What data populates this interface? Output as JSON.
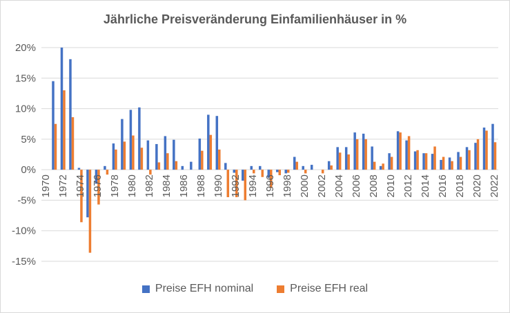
{
  "chart_data": {
    "type": "bar",
    "title": "Jährliche Preisveränderung Einfamilienhäuser in %",
    "xlabel": "",
    "ylabel": "",
    "ylim": [
      -15,
      20
    ],
    "yticks": [
      20,
      15,
      10,
      5,
      0,
      -5,
      -10,
      -15
    ],
    "ytick_labels": [
      "20%",
      "15%",
      "10%",
      "5%",
      "0%",
      "-5%",
      "-10%",
      "-15%"
    ],
    "grid": true,
    "legend_position": "bottom",
    "categories": [
      "1970",
      "1971",
      "1972",
      "1973",
      "1974",
      "1975",
      "1976",
      "1977",
      "1978",
      "1979",
      "1980",
      "1981",
      "1982",
      "1983",
      "1984",
      "1985",
      "1986",
      "1987",
      "1988",
      "1989",
      "1990",
      "1991",
      "1992",
      "1993",
      "1994",
      "1995",
      "1996",
      "1997",
      "1998",
      "1999",
      "2000",
      "2001",
      "2002",
      "2003",
      "2004",
      "2005",
      "2006",
      "2007",
      "2008",
      "2009",
      "2010",
      "2011",
      "2012",
      "2013",
      "2014",
      "2015",
      "2016",
      "2017",
      "2018",
      "2019",
      "2020",
      "2021",
      "2022"
    ],
    "xtick_labels": [
      "1970",
      "1972",
      "1974",
      "1976",
      "1978",
      "1980",
      "1982",
      "1984",
      "1986",
      "1988",
      "1990",
      "1992",
      "1994",
      "1996",
      "1998",
      "2000",
      "2002",
      "2004",
      "2006",
      "2008",
      "2010",
      "2012",
      "2014",
      "2016",
      "2018",
      "2020",
      "2022"
    ],
    "series": [
      {
        "name": "Preise EFH nominal",
        "color": "#4472c4",
        "values": [
          0,
          14.5,
          20.0,
          18.1,
          0.3,
          -7.8,
          -2.3,
          0.6,
          4.3,
          8.3,
          9.8,
          10.2,
          4.8,
          4.2,
          5.5,
          4.9,
          0.6,
          1.3,
          5.1,
          9.0,
          8.8,
          1.1,
          -0.5,
          -1.8,
          0.6,
          0.6,
          -1.3,
          -0.4,
          -0.6,
          2.1,
          0.6,
          0.8,
          0.0,
          1.4,
          3.7,
          3.7,
          6.1,
          5.9,
          3.8,
          0.6,
          2.7,
          6.3,
          4.8,
          3.0,
          2.7,
          2.6,
          1.6,
          2.0,
          2.9,
          3.7,
          4.4,
          6.9,
          7.5
        ]
      },
      {
        "name": "Preise EFH real",
        "color": "#ed7d31",
        "values": [
          0,
          7.5,
          13.0,
          8.6,
          -8.6,
          -13.6,
          -5.7,
          -0.8,
          3.3,
          4.6,
          5.6,
          3.6,
          -0.8,
          1.2,
          2.7,
          1.4,
          0.0,
          0.0,
          3.1,
          5.7,
          3.3,
          -4.5,
          -4.5,
          -5.0,
          -0.6,
          -1.2,
          -3.0,
          -0.9,
          -0.5,
          1.3,
          -0.6,
          0.0,
          -0.6,
          0.7,
          2.8,
          2.5,
          5.0,
          5.0,
          1.3,
          1.0,
          2.1,
          6.1,
          5.5,
          3.2,
          2.7,
          3.8,
          2.1,
          1.4,
          2.1,
          3.2,
          5.0,
          6.4,
          4.5
        ]
      }
    ]
  }
}
